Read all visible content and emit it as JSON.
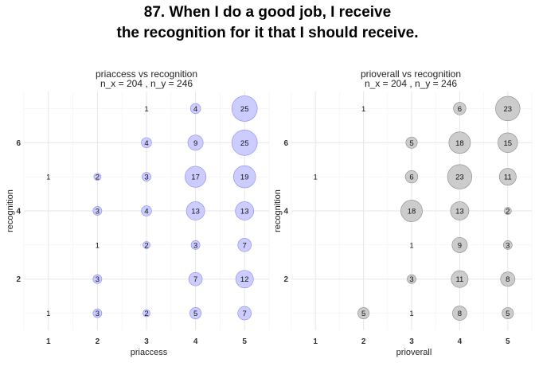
{
  "title_line1": "87. When I do a good job, I receive",
  "title_line2": "the recognition for it that I should receive.",
  "chart_data": [
    {
      "type": "scatter",
      "title_line1": "priaccess vs recognition",
      "title_line2": "n_x = 204 , n_y = 246",
      "xlabel": "priaccess",
      "ylabel": "recognition",
      "x_ticks": [
        1,
        2,
        3,
        4,
        5
      ],
      "y_ticks": [
        2,
        4,
        6
      ],
      "xlim": [
        0.5,
        5.5
      ],
      "ylim": [
        0.5,
        7.5
      ],
      "color": "#ccccff",
      "stroke": "#8888ee",
      "points": [
        {
          "x": 3,
          "y": 7,
          "n": 1
        },
        {
          "x": 4,
          "y": 7,
          "n": 4
        },
        {
          "x": 5,
          "y": 7,
          "n": 25
        },
        {
          "x": 3,
          "y": 6,
          "n": 4
        },
        {
          "x": 4,
          "y": 6,
          "n": 9
        },
        {
          "x": 5,
          "y": 6,
          "n": 25
        },
        {
          "x": 1,
          "y": 5,
          "n": 1
        },
        {
          "x": 2,
          "y": 5,
          "n": 2
        },
        {
          "x": 3,
          "y": 5,
          "n": 3
        },
        {
          "x": 4,
          "y": 5,
          "n": 17
        },
        {
          "x": 5,
          "y": 5,
          "n": 19
        },
        {
          "x": 2,
          "y": 4,
          "n": 3
        },
        {
          "x": 3,
          "y": 4,
          "n": 4
        },
        {
          "x": 4,
          "y": 4,
          "n": 13
        },
        {
          "x": 5,
          "y": 4,
          "n": 13
        },
        {
          "x": 2,
          "y": 3,
          "n": 1
        },
        {
          "x": 3,
          "y": 3,
          "n": 2
        },
        {
          "x": 4,
          "y": 3,
          "n": 3
        },
        {
          "x": 5,
          "y": 3,
          "n": 7
        },
        {
          "x": 2,
          "y": 2,
          "n": 3
        },
        {
          "x": 4,
          "y": 2,
          "n": 7
        },
        {
          "x": 5,
          "y": 2,
          "n": 12
        },
        {
          "x": 1,
          "y": 1,
          "n": 1
        },
        {
          "x": 2,
          "y": 1,
          "n": 3
        },
        {
          "x": 3,
          "y": 1,
          "n": 2
        },
        {
          "x": 4,
          "y": 1,
          "n": 5
        },
        {
          "x": 5,
          "y": 1,
          "n": 7
        }
      ]
    },
    {
      "type": "scatter",
      "title_line1": "prioverall vs recognition",
      "title_line2": "n_x = 204 , n_y = 246",
      "xlabel": "prioverall",
      "ylabel": "recognition",
      "x_ticks": [
        1,
        2,
        3,
        4,
        5
      ],
      "y_ticks": [
        2,
        4,
        6
      ],
      "xlim": [
        0.5,
        5.5
      ],
      "ylim": [
        0.5,
        7.5
      ],
      "color": "#cccccc",
      "stroke": "#888888",
      "points": [
        {
          "x": 2,
          "y": 7,
          "n": 1
        },
        {
          "x": 4,
          "y": 7,
          "n": 6
        },
        {
          "x": 5,
          "y": 7,
          "n": 23
        },
        {
          "x": 3,
          "y": 6,
          "n": 5
        },
        {
          "x": 4,
          "y": 6,
          "n": 18
        },
        {
          "x": 5,
          "y": 6,
          "n": 15
        },
        {
          "x": 1,
          "y": 5,
          "n": 1
        },
        {
          "x": 3,
          "y": 5,
          "n": 6
        },
        {
          "x": 4,
          "y": 5,
          "n": 23
        },
        {
          "x": 5,
          "y": 5,
          "n": 11
        },
        {
          "x": 3,
          "y": 4,
          "n": 18
        },
        {
          "x": 4,
          "y": 4,
          "n": 13
        },
        {
          "x": 5,
          "y": 4,
          "n": 2
        },
        {
          "x": 3,
          "y": 3,
          "n": 1
        },
        {
          "x": 4,
          "y": 3,
          "n": 9
        },
        {
          "x": 5,
          "y": 3,
          "n": 3
        },
        {
          "x": 3,
          "y": 2,
          "n": 3
        },
        {
          "x": 4,
          "y": 2,
          "n": 11
        },
        {
          "x": 5,
          "y": 2,
          "n": 8
        },
        {
          "x": 2,
          "y": 1,
          "n": 5
        },
        {
          "x": 3,
          "y": 1,
          "n": 1
        },
        {
          "x": 4,
          "y": 1,
          "n": 8
        },
        {
          "x": 5,
          "y": 1,
          "n": 5
        }
      ]
    }
  ]
}
